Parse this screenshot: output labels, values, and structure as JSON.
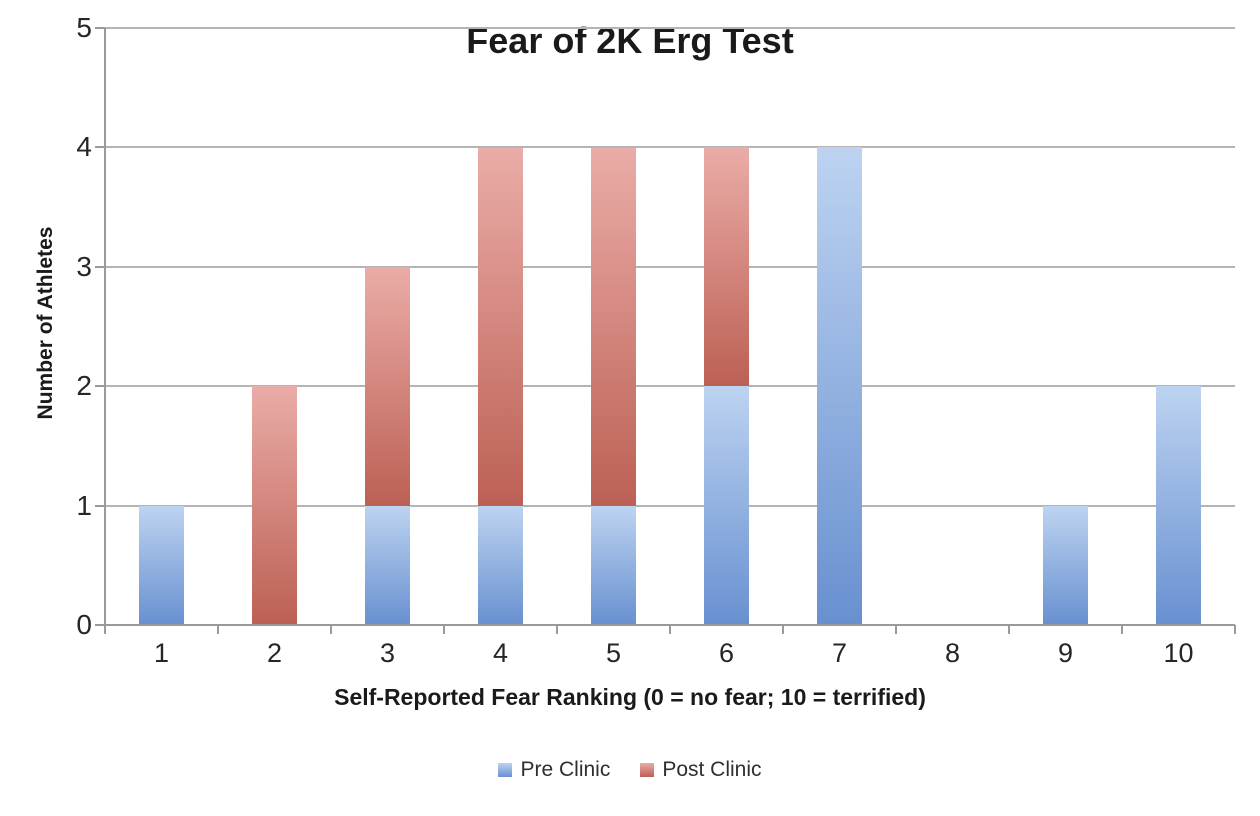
{
  "chart_data": {
    "type": "bar",
    "stacked": true,
    "title": "Fear of 2K Erg Test",
    "xlabel": "Self-Reported Fear Ranking (0 = no fear; 10 = terrified)",
    "ylabel": "Number of Athletes",
    "categories": [
      "1",
      "2",
      "3",
      "4",
      "5",
      "6",
      "7",
      "8",
      "9",
      "10"
    ],
    "series": [
      {
        "name": "Pre Clinic",
        "values": [
          1,
          0,
          1,
          1,
          1,
          2,
          4,
          0,
          1,
          2
        ],
        "color_top": "#bdd3f1",
        "color_bottom": "#6890d0"
      },
      {
        "name": "Post Clinic",
        "values": [
          0,
          2,
          2,
          3,
          3,
          2,
          0,
          0,
          0,
          0
        ],
        "color_top": "#eaaca7",
        "color_bottom": "#bc6054"
      }
    ],
    "ylim": [
      0,
      5
    ],
    "yticks": [
      0,
      1,
      2,
      3,
      4,
      5
    ],
    "grid": true,
    "legend_position": "bottom"
  },
  "colors": {
    "gridline": "#b4b4b4",
    "axis": "#9a9a9a",
    "title_text": "#1a1a1a",
    "tick_text": "#262626",
    "legend_text": "#2f2f2f",
    "background": "#ffffff"
  }
}
